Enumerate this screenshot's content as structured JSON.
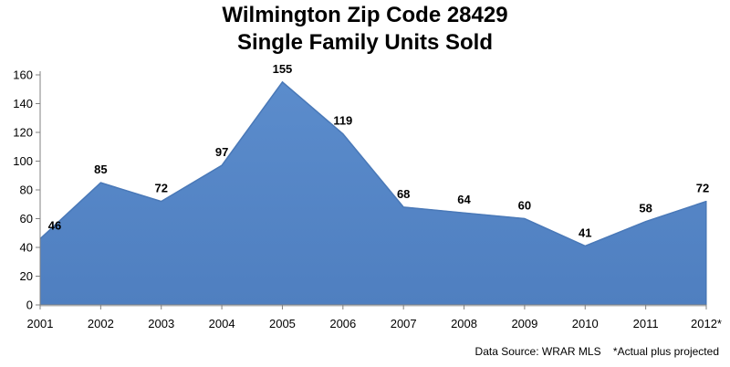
{
  "chart_data": {
    "type": "area",
    "title_lines": [
      "Wilmington Zip Code 28429",
      "Single Family Units Sold"
    ],
    "categories": [
      "2001",
      "2002",
      "2003",
      "2004",
      "2005",
      "2006",
      "2007",
      "2008",
      "2009",
      "2010",
      "2011",
      "2012*"
    ],
    "values": [
      46,
      85,
      72,
      97,
      155,
      119,
      68,
      64,
      60,
      41,
      58,
      72
    ],
    "data_labels": [
      "46",
      "85",
      "72",
      "97",
      "155",
      "119",
      "68",
      "64",
      "60",
      "41",
      "58",
      "72"
    ],
    "y_ticks": [
      "0",
      "20",
      "40",
      "60",
      "80",
      "100",
      "120",
      "140",
      "160"
    ],
    "ylim": [
      0,
      160
    ],
    "xlabel": "",
    "ylabel": "",
    "grid": false,
    "legend": "none",
    "fill_color": "#5b8ccc",
    "edge_color": "#3f6fae"
  },
  "footnote": {
    "source": "Data Source: WRAR MLS",
    "note": "*Actual plus projected"
  }
}
